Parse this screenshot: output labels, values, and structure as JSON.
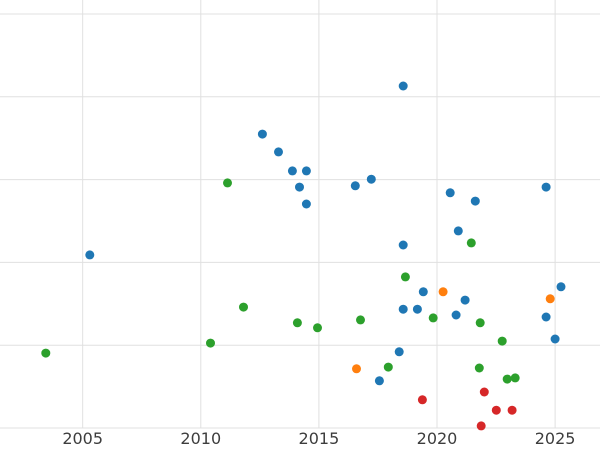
{
  "chart_data": {
    "type": "scatter",
    "title": "",
    "xlabel": "",
    "ylabel": "",
    "x_ticks": [
      2005,
      2010,
      2015,
      2020,
      2025
    ],
    "x_tick_labels": [
      "2005",
      "2010",
      "2015",
      "2020",
      "2025"
    ],
    "y_ticks": [
      0,
      2,
      4,
      6,
      8,
      10
    ],
    "y_tick_labels": [],
    "xlim": [
      2001.5,
      2026.9
    ],
    "ylim": [
      0,
      10
    ],
    "grid": true,
    "grid_color": "#e0e0e0",
    "background_color": "#ffffff",
    "tick_label_color": "#3d3d3d",
    "marker_radius": 4.5,
    "legend": null,
    "series": [
      {
        "name": "series-blue",
        "color": "#1f77b4",
        "points": [
          [
            2005.3,
            4.18
          ],
          [
            2012.61,
            7.1
          ],
          [
            2013.29,
            6.67
          ],
          [
            2013.88,
            6.21
          ],
          [
            2014.47,
            6.21
          ],
          [
            2014.18,
            5.82
          ],
          [
            2014.47,
            5.41
          ],
          [
            2016.54,
            5.85
          ],
          [
            2017.22,
            6.01
          ],
          [
            2018.57,
            8.26
          ],
          [
            2018.57,
            4.42
          ],
          [
            2020.56,
            5.68
          ],
          [
            2020.9,
            4.76
          ],
          [
            2021.62,
            5.48
          ],
          [
            2024.62,
            5.82
          ],
          [
            2025.25,
            3.41
          ],
          [
            2024.62,
            2.68
          ],
          [
            2025.0,
            2.15
          ],
          [
            2018.57,
            2.87
          ],
          [
            2019.17,
            2.87
          ],
          [
            2019.42,
            3.29
          ],
          [
            2020.81,
            2.73
          ],
          [
            2021.19,
            3.09
          ],
          [
            2018.4,
            1.84
          ],
          [
            2017.56,
            1.14
          ]
        ]
      },
      {
        "name": "series-green",
        "color": "#2ca02c",
        "points": [
          [
            2003.44,
            1.81
          ],
          [
            2011.13,
            5.92
          ],
          [
            2010.41,
            2.05
          ],
          [
            2011.81,
            2.92
          ],
          [
            2014.09,
            2.54
          ],
          [
            2014.94,
            2.42
          ],
          [
            2016.76,
            2.61
          ],
          [
            2017.94,
            1.47
          ],
          [
            2018.66,
            3.65
          ],
          [
            2019.84,
            2.66
          ],
          [
            2021.45,
            4.47
          ],
          [
            2021.83,
            2.54
          ],
          [
            2021.79,
            1.45
          ],
          [
            2022.76,
            2.1
          ],
          [
            2022.97,
            1.18
          ],
          [
            2023.31,
            1.21
          ]
        ]
      },
      {
        "name": "series-orange",
        "color": "#ff7f0e",
        "points": [
          [
            2016.59,
            1.43
          ],
          [
            2020.26,
            3.29
          ],
          [
            2024.79,
            3.12
          ]
        ]
      },
      {
        "name": "series-red",
        "color": "#d62728",
        "points": [
          [
            2019.38,
            0.68
          ],
          [
            2022.0,
            0.87
          ],
          [
            2022.51,
            0.43
          ],
          [
            2023.18,
            0.43
          ],
          [
            2021.87,
            0.05
          ]
        ]
      }
    ]
  }
}
